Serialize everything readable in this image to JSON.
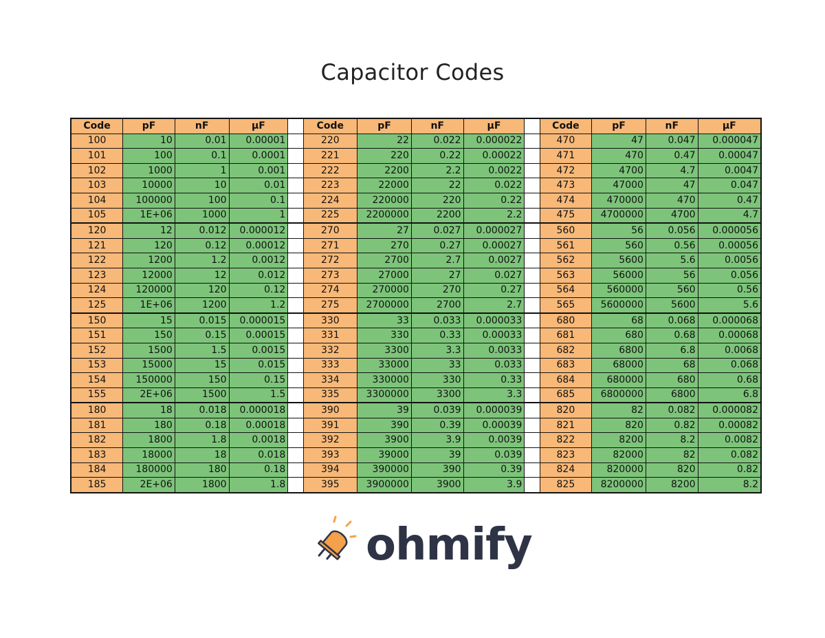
{
  "title": "Capacitor Codes",
  "headers": [
    "Code",
    "pF",
    "nF",
    "µF"
  ],
  "colors": {
    "code_fill": "#f7b878",
    "value_fill": "#7dc47a",
    "logo_orange": "#f5a04a",
    "logo_text": "#2e3445"
  },
  "rows": [
    [
      [
        "100",
        "10",
        "0.01",
        "0.00001"
      ],
      [
        "220",
        "22",
        "0.022",
        "0.000022"
      ],
      [
        "470",
        "47",
        "0.047",
        "0.000047"
      ]
    ],
    [
      [
        "101",
        "100",
        "0.1",
        "0.0001"
      ],
      [
        "221",
        "220",
        "0.22",
        "0.00022"
      ],
      [
        "471",
        "470",
        "0.47",
        "0.00047"
      ]
    ],
    [
      [
        "102",
        "1000",
        "1",
        "0.001"
      ],
      [
        "222",
        "2200",
        "2.2",
        "0.0022"
      ],
      [
        "472",
        "4700",
        "4.7",
        "0.0047"
      ]
    ],
    [
      [
        "103",
        "10000",
        "10",
        "0.01"
      ],
      [
        "223",
        "22000",
        "22",
        "0.022"
      ],
      [
        "473",
        "47000",
        "47",
        "0.047"
      ]
    ],
    [
      [
        "104",
        "100000",
        "100",
        "0.1"
      ],
      [
        "224",
        "220000",
        "220",
        "0.22"
      ],
      [
        "474",
        "470000",
        "470",
        "0.47"
      ]
    ],
    [
      [
        "105",
        "1E+06",
        "1000",
        "1"
      ],
      [
        "225",
        "2200000",
        "2200",
        "2.2"
      ],
      [
        "475",
        "4700000",
        "4700",
        "4.7"
      ]
    ],
    [
      [
        "120",
        "12",
        "0.012",
        "0.000012"
      ],
      [
        "270",
        "27",
        "0.027",
        "0.000027"
      ],
      [
        "560",
        "56",
        "0.056",
        "0.000056"
      ]
    ],
    [
      [
        "121",
        "120",
        "0.12",
        "0.00012"
      ],
      [
        "271",
        "270",
        "0.27",
        "0.00027"
      ],
      [
        "561",
        "560",
        "0.56",
        "0.00056"
      ]
    ],
    [
      [
        "122",
        "1200",
        "1.2",
        "0.0012"
      ],
      [
        "272",
        "2700",
        "2.7",
        "0.0027"
      ],
      [
        "562",
        "5600",
        "5.6",
        "0.0056"
      ]
    ],
    [
      [
        "123",
        "12000",
        "12",
        "0.012"
      ],
      [
        "273",
        "27000",
        "27",
        "0.027"
      ],
      [
        "563",
        "56000",
        "56",
        "0.056"
      ]
    ],
    [
      [
        "124",
        "120000",
        "120",
        "0.12"
      ],
      [
        "274",
        "270000",
        "270",
        "0.27"
      ],
      [
        "564",
        "560000",
        "560",
        "0.56"
      ]
    ],
    [
      [
        "125",
        "1E+06",
        "1200",
        "1.2"
      ],
      [
        "275",
        "2700000",
        "2700",
        "2.7"
      ],
      [
        "565",
        "5600000",
        "5600",
        "5.6"
      ]
    ],
    [
      [
        "150",
        "15",
        "0.015",
        "0.000015"
      ],
      [
        "330",
        "33",
        "0.033",
        "0.000033"
      ],
      [
        "680",
        "68",
        "0.068",
        "0.000068"
      ]
    ],
    [
      [
        "151",
        "150",
        "0.15",
        "0.00015"
      ],
      [
        "331",
        "330",
        "0.33",
        "0.00033"
      ],
      [
        "681",
        "680",
        "0.68",
        "0.00068"
      ]
    ],
    [
      [
        "152",
        "1500",
        "1.5",
        "0.0015"
      ],
      [
        "332",
        "3300",
        "3.3",
        "0.0033"
      ],
      [
        "682",
        "6800",
        "6.8",
        "0.0068"
      ]
    ],
    [
      [
        "153",
        "15000",
        "15",
        "0.015"
      ],
      [
        "333",
        "33000",
        "33",
        "0.033"
      ],
      [
        "683",
        "68000",
        "68",
        "0.068"
      ]
    ],
    [
      [
        "154",
        "150000",
        "150",
        "0.15"
      ],
      [
        "334",
        "330000",
        "330",
        "0.33"
      ],
      [
        "684",
        "680000",
        "680",
        "0.68"
      ]
    ],
    [
      [
        "155",
        "2E+06",
        "1500",
        "1.5"
      ],
      [
        "335",
        "3300000",
        "3300",
        "3.3"
      ],
      [
        "685",
        "6800000",
        "6800",
        "6.8"
      ]
    ],
    [
      [
        "180",
        "18",
        "0.018",
        "0.000018"
      ],
      [
        "390",
        "39",
        "0.039",
        "0.000039"
      ],
      [
        "820",
        "82",
        "0.082",
        "0.000082"
      ]
    ],
    [
      [
        "181",
        "180",
        "0.18",
        "0.00018"
      ],
      [
        "391",
        "390",
        "0.39",
        "0.00039"
      ],
      [
        "821",
        "820",
        "0.82",
        "0.00082"
      ]
    ],
    [
      [
        "182",
        "1800",
        "1.8",
        "0.0018"
      ],
      [
        "392",
        "3900",
        "3.9",
        "0.0039"
      ],
      [
        "822",
        "8200",
        "8.2",
        "0.0082"
      ]
    ],
    [
      [
        "183",
        "18000",
        "18",
        "0.018"
      ],
      [
        "393",
        "39000",
        "39",
        "0.039"
      ],
      [
        "823",
        "82000",
        "82",
        "0.082"
      ]
    ],
    [
      [
        "184",
        "180000",
        "180",
        "0.18"
      ],
      [
        "394",
        "390000",
        "390",
        "0.39"
      ],
      [
        "824",
        "820000",
        "820",
        "0.82"
      ]
    ],
    [
      [
        "185",
        "2E+06",
        "1800",
        "1.8"
      ],
      [
        "395",
        "3900000",
        "3900",
        "3.9"
      ],
      [
        "825",
        "8200000",
        "8200",
        "8.2"
      ]
    ]
  ],
  "logo": {
    "text": "ohmify",
    "icon": "bell-led-icon"
  }
}
